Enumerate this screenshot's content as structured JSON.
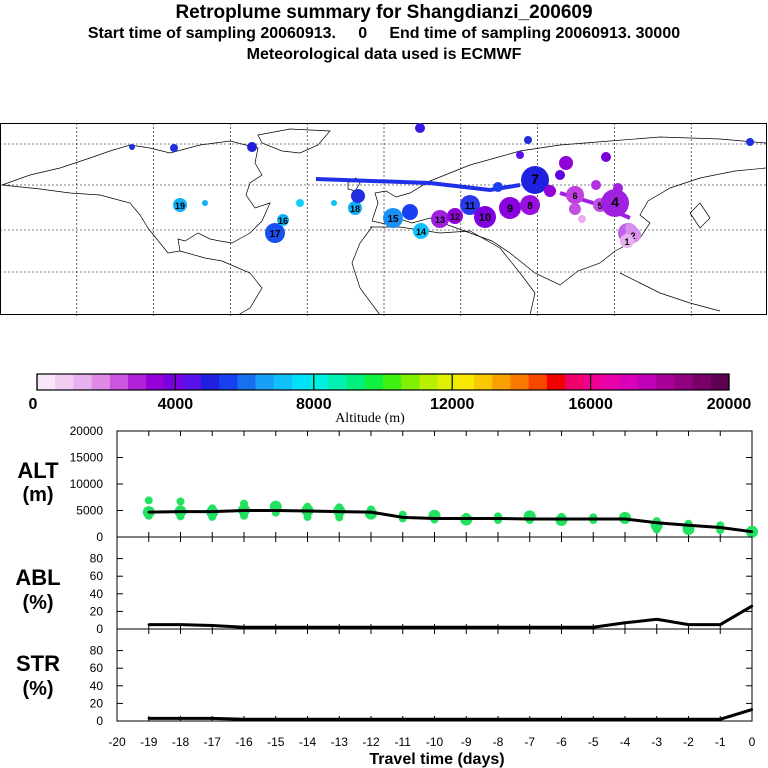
{
  "header": {
    "title": "Retroplume summary for Shangdianzi_200609",
    "line2": "Start time of sampling 20060913.     0     End time of sampling 20060913. 30000",
    "line3": "Meteorological data used is ECMWF"
  },
  "colorbar": {
    "label": "Altitude (m)",
    "ticks": [
      "0",
      "4000",
      "8000",
      "12000",
      "16000",
      "20000"
    ],
    "colors": [
      "#f7e6f7",
      "#f0cdf0",
      "#e8b0ee",
      "#e08ae8",
      "#cc55e0",
      "#b020d8",
      "#9400d8",
      "#7a00e0",
      "#5a10e8",
      "#2020e0",
      "#1840f0",
      "#1870f0",
      "#18a0f8",
      "#10c0f8",
      "#00e0f8",
      "#00f0e0",
      "#00f0b0",
      "#00f080",
      "#10f040",
      "#40f010",
      "#80f000",
      "#b8f000",
      "#e0f000",
      "#f8e800",
      "#f8c800",
      "#f8a000",
      "#f87800",
      "#f84800",
      "#f00000",
      "#f0006a",
      "#f00090",
      "#e800a8",
      "#d800b8",
      "#c000b8",
      "#a80098",
      "#900080",
      "#780068",
      "#600050"
    ]
  },
  "map": {
    "plume_labels": [
      "17",
      "16",
      "15",
      "14",
      "13",
      "12",
      "11",
      "10",
      "9",
      "8",
      "7",
      "6",
      "5",
      "4",
      "3",
      "2",
      "1",
      "19",
      "18"
    ]
  },
  "chart_data": [
    {
      "type": "line",
      "panel": "altitude",
      "title": "ALT",
      "ylabel": "ALT (m)",
      "xlabel": "Travel time (days)",
      "ylim": [
        0,
        20000
      ],
      "yticks": [
        "20000",
        "15000",
        "10000",
        "5000",
        "0"
      ],
      "x": [
        -19,
        -18,
        -17,
        -16,
        -15,
        -14,
        -13,
        -12,
        -11,
        -10,
        -9,
        -8,
        -7,
        -6,
        -5,
        -4,
        -3,
        -2,
        -1,
        0
      ],
      "series": [
        {
          "name": "mean altitude",
          "values": [
            4700,
            4800,
            4800,
            5000,
            5000,
            4900,
            4800,
            4700,
            3700,
            3500,
            3500,
            3500,
            3400,
            3400,
            3400,
            3400,
            2700,
            2200,
            1800,
            1000
          ]
        }
      ],
      "scatter": {
        "x": [
          -19,
          -19,
          -19,
          -18,
          -18,
          -18,
          -17,
          -17,
          -17,
          -16,
          -16,
          -16,
          -15,
          -15,
          -15,
          -14,
          -14,
          -14,
          -13,
          -13,
          -13,
          -12,
          -12,
          -11,
          -11,
          -10,
          -10,
          -9,
          -9,
          -8,
          -8,
          -7,
          -7,
          -6,
          -6,
          -5,
          -5,
          -4,
          -4,
          -3,
          -3,
          -3,
          -2,
          -2,
          -1,
          -1,
          0
        ],
        "y": [
          6900,
          4700,
          4000,
          6700,
          4800,
          3900,
          5400,
          4700,
          3800,
          6300,
          5100,
          4000,
          6100,
          5700,
          4600,
          5700,
          5000,
          3800,
          5600,
          4900,
          3700,
          5200,
          4400,
          4200,
          3500,
          4000,
          3300,
          3800,
          3300,
          3900,
          3200,
          3900,
          3200,
          3800,
          3200,
          3700,
          3200,
          3600,
          3200,
          3000,
          2200,
          1400,
          2500,
          1500,
          2200,
          1300,
          1000
        ]
      }
    },
    {
      "type": "line",
      "panel": "abl",
      "title": "ABL",
      "ylabel": "ABL (%)",
      "ylim": [
        0,
        100
      ],
      "yticks": [
        "80",
        "60",
        "40",
        "20",
        "0"
      ],
      "x": [
        -19,
        -18,
        -17,
        -16,
        -15,
        -14,
        -13,
        -12,
        -11,
        -10,
        -9,
        -8,
        -7,
        -6,
        -5,
        -4,
        -3,
        -2,
        -1,
        0
      ],
      "series": [
        {
          "name": "fraction in ABL",
          "values": [
            5,
            5,
            4,
            2,
            2,
            2,
            2,
            2,
            2,
            2,
            2,
            2,
            2,
            2,
            2,
            7,
            11,
            5,
            5,
            26
          ]
        }
      ]
    },
    {
      "type": "line",
      "panel": "str",
      "title": "STR",
      "ylabel": "STR (%)",
      "ylim": [
        0,
        100
      ],
      "yticks": [
        "80",
        "60",
        "40",
        "20",
        "0"
      ],
      "x": [
        -19,
        -18,
        -17,
        -16,
        -15,
        -14,
        -13,
        -12,
        -11,
        -10,
        -9,
        -8,
        -7,
        -6,
        -5,
        -4,
        -3,
        -2,
        -1,
        0
      ],
      "series": [
        {
          "name": "fraction in stratosphere",
          "values": [
            3,
            3,
            3,
            2,
            2,
            2,
            2,
            2,
            2,
            2,
            2,
            2,
            2,
            2,
            2,
            2,
            2,
            2,
            2,
            13
          ]
        }
      ]
    }
  ],
  "xaxis": {
    "label": "Travel time (days)",
    "ticks": [
      "-20",
      "-19",
      "-18",
      "-17",
      "-16",
      "-15",
      "-14",
      "-13",
      "-12",
      "-11",
      "-10",
      "-9",
      "-8",
      "-7",
      "-6",
      "-5",
      "-4",
      "-3",
      "-2",
      "-1",
      "0"
    ]
  },
  "panel_labels": {
    "alt_top": "ALT",
    "alt_unit": "(m)",
    "abl_top": "ABL",
    "abl_unit": "(%)",
    "str_top": "STR",
    "str_unit": "(%)"
  },
  "colors": {
    "scatter": "#22e060",
    "line": "#000000"
  }
}
